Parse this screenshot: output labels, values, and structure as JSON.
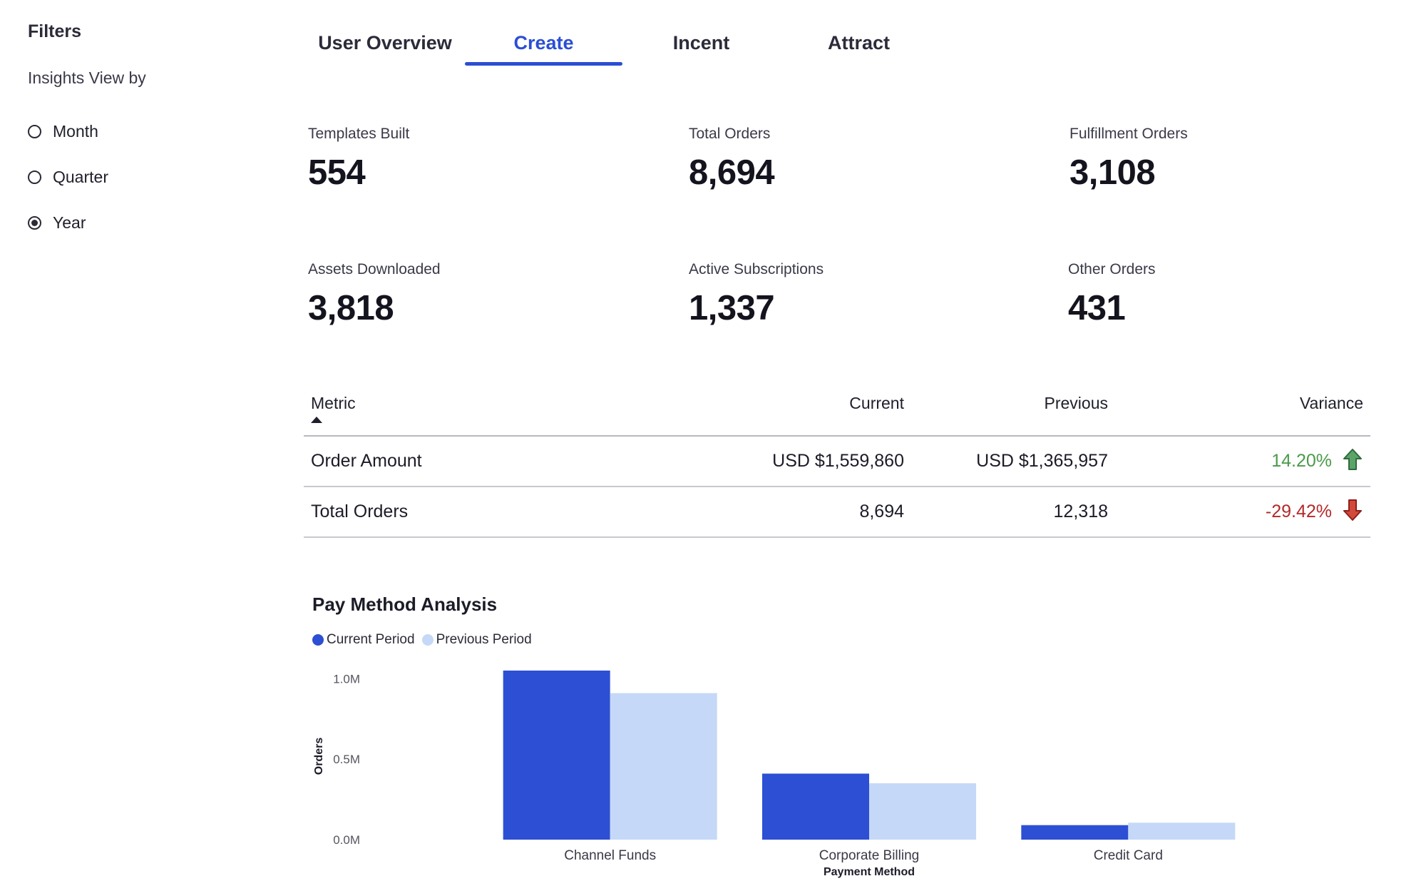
{
  "colors": {
    "accent": "#2b4ed4",
    "current_series": "#2d4fd3",
    "previous_series": "#c5d8f7",
    "positive": "#4a9a4a",
    "negative": "#b32a2a"
  },
  "sidebar": {
    "title": "Filters",
    "view_by_label": "Insights View by",
    "options": [
      {
        "label": "Month",
        "selected": false
      },
      {
        "label": "Quarter",
        "selected": false
      },
      {
        "label": "Year",
        "selected": true
      }
    ]
  },
  "tabs": [
    {
      "label": "User Overview",
      "active": false
    },
    {
      "label": "Create",
      "active": true
    },
    {
      "label": "Incent",
      "active": false
    },
    {
      "label": "Attract",
      "active": false
    }
  ],
  "kpis": [
    {
      "label": "Templates Built",
      "value": "554"
    },
    {
      "label": "Total Orders",
      "value": "8,694"
    },
    {
      "label": "Fulfillment Orders",
      "value": "3,108"
    },
    {
      "label": "Assets Downloaded",
      "value": "3,818"
    },
    {
      "label": "Active Subscriptions",
      "value": "1,337"
    },
    {
      "label": "Other Orders",
      "value": "431"
    }
  ],
  "table": {
    "headers": {
      "metric": "Metric",
      "current": "Current",
      "previous": "Previous",
      "variance": "Variance"
    },
    "sort_icon": "sort-ascending-icon",
    "rows": [
      {
        "metric": "Order Amount",
        "current": "USD $1,559,860",
        "previous": "USD $1,365,957",
        "variance": "14.20%",
        "trend": "up",
        "trend_icon": "arrow-up-icon"
      },
      {
        "metric": "Total Orders",
        "current": "8,694",
        "previous": "12,318",
        "variance": "-29.42%",
        "trend": "down",
        "trend_icon": "arrow-down-icon"
      }
    ]
  },
  "chart_data": {
    "type": "bar",
    "title": "Pay Method Analysis",
    "xlabel": "Payment Method",
    "ylabel": "Orders",
    "categories": [
      "Channel Funds",
      "Corporate Billing",
      "Credit Card"
    ],
    "series": [
      {
        "name": "Current Period",
        "values": [
          1050000,
          410000,
          90000
        ]
      },
      {
        "name": "Previous Period",
        "values": [
          910000,
          350000,
          105000
        ]
      }
    ],
    "ylim": [
      0,
      1050000
    ],
    "yticks": [
      {
        "value": 0,
        "label": "0.0M"
      },
      {
        "value": 500000,
        "label": "0.5M"
      },
      {
        "value": 1000000,
        "label": "1.0M"
      }
    ],
    "legend_position": "top-left",
    "grid": false
  }
}
